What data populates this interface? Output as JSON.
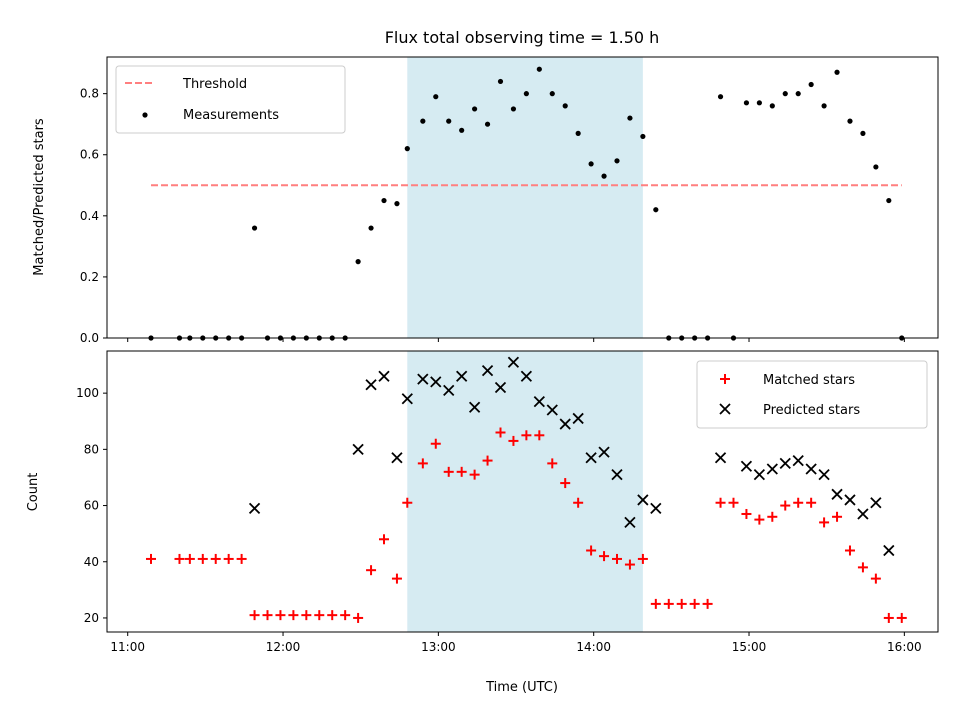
{
  "chart_data": [
    {
      "type": "scatter",
      "title": "Flux total observing time = 1.50 h",
      "xlabel": "",
      "ylabel": "Matched/Predicted stars",
      "ylim": [
        0,
        0.92
      ],
      "yticks": [
        "0.0",
        "0.2",
        "0.4",
        "0.6",
        "0.8"
      ],
      "yticks_values": [
        0,
        0.2,
        0.4,
        0.6,
        0.8
      ],
      "xlim": [
        "10:52",
        "16:13"
      ],
      "highlight_span": {
        "x_start": "12:48",
        "x_end": "14:19",
        "color": "#add8e6"
      },
      "threshold": {
        "name": "Threshold",
        "value": 0.5,
        "x_start": "11:09",
        "x_end": "15:59",
        "color": "#ff7f7f",
        "style": "dashed"
      },
      "legend": {
        "location": "top-left",
        "entries": [
          "Threshold",
          "Measurements"
        ]
      },
      "series": [
        {
          "name": "Measurements",
          "marker": "dot",
          "color": "#000000",
          "x": [
            "11:09",
            "11:20",
            "11:24",
            "11:29",
            "11:34",
            "11:39",
            "11:44",
            "11:49",
            "11:54",
            "11:59",
            "12:04",
            "12:09",
            "12:14",
            "12:19",
            "12:24",
            "12:29",
            "12:34",
            "12:39",
            "12:44",
            "12:48",
            "12:54",
            "12:59",
            "13:04",
            "13:09",
            "13:14",
            "13:19",
            "13:24",
            "13:29",
            "13:34",
            "13:39",
            "13:44",
            "13:49",
            "13:54",
            "13:59",
            "14:04",
            "14:09",
            "14:14",
            "14:19",
            "14:24",
            "14:29",
            "14:34",
            "14:39",
            "14:44",
            "14:49",
            "14:54",
            "14:59",
            "15:04",
            "15:09",
            "15:14",
            "15:19",
            "15:24",
            "15:29",
            "15:34",
            "15:39",
            "15:44",
            "15:49",
            "15:54",
            "15:59"
          ],
          "y": [
            0,
            0,
            0,
            0,
            0,
            0,
            0,
            0.36,
            0,
            0,
            0,
            0,
            0,
            0,
            0,
            0.25,
            0.36,
            0.45,
            0.44,
            0.62,
            0.71,
            0.79,
            0.71,
            0.68,
            0.75,
            0.7,
            0.84,
            0.75,
            0.8,
            0.88,
            0.8,
            0.76,
            0.67,
            0.57,
            0.53,
            0.58,
            0.72,
            0.66,
            0.42,
            0,
            0,
            0,
            0,
            0.79,
            0,
            0.77,
            0.77,
            0.76,
            0.8,
            0.8,
            0.83,
            0.76,
            0.87,
            0.71,
            0.67,
            0.56,
            0.45,
            0
          ]
        }
      ]
    },
    {
      "type": "scatter",
      "title": "",
      "xlabel": "Time (UTC)",
      "ylabel": "Count",
      "ylim": [
        15,
        115
      ],
      "yticks": [
        "20",
        "40",
        "60",
        "80",
        "100"
      ],
      "yticks_values": [
        20,
        40,
        60,
        80,
        100
      ],
      "xlim": [
        "10:52",
        "16:13"
      ],
      "xticks": [
        "11:00",
        "12:00",
        "13:00",
        "14:00",
        "15:00",
        "16:00"
      ],
      "highlight_span": {
        "x_start": "12:48",
        "x_end": "14:19",
        "color": "#add8e6"
      },
      "legend": {
        "location": "top-right",
        "entries": [
          "Matched stars",
          "Predicted stars"
        ]
      },
      "series": [
        {
          "name": "Matched stars",
          "marker": "plus",
          "color": "#ff0000",
          "x": [
            "11:09",
            "11:20",
            "11:24",
            "11:29",
            "11:34",
            "11:39",
            "11:44",
            "11:49",
            "11:54",
            "11:59",
            "12:04",
            "12:09",
            "12:14",
            "12:19",
            "12:24",
            "12:29",
            "12:34",
            "12:39",
            "12:44",
            "12:48",
            "12:54",
            "12:59",
            "13:04",
            "13:09",
            "13:14",
            "13:19",
            "13:24",
            "13:29",
            "13:34",
            "13:39",
            "13:44",
            "13:49",
            "13:54",
            "13:59",
            "14:04",
            "14:09",
            "14:14",
            "14:19",
            "14:24",
            "14:29",
            "14:34",
            "14:39",
            "14:44",
            "14:49",
            "14:54",
            "14:59",
            "15:04",
            "15:09",
            "15:14",
            "15:19",
            "15:24",
            "15:29",
            "15:34",
            "15:39",
            "15:44",
            "15:49",
            "15:54",
            "15:59"
          ],
          "y": [
            41,
            41,
            41,
            41,
            41,
            41,
            41,
            21,
            21,
            21,
            21,
            21,
            21,
            21,
            21,
            20,
            37,
            48,
            34,
            61,
            75,
            82,
            72,
            72,
            71,
            76,
            86,
            83,
            85,
            85,
            75,
            68,
            61,
            44,
            42,
            41,
            39,
            41,
            25,
            25,
            25,
            25,
            25,
            61,
            61,
            57,
            55,
            56,
            60,
            61,
            61,
            54,
            56,
            44,
            38,
            34,
            20,
            20
          ]
        },
        {
          "name": "Predicted stars",
          "marker": "x",
          "color": "#000000",
          "x": [
            "11:49",
            "12:29",
            "12:34",
            "12:39",
            "12:44",
            "12:48",
            "12:54",
            "12:59",
            "13:04",
            "13:09",
            "13:14",
            "13:19",
            "13:24",
            "13:29",
            "13:34",
            "13:39",
            "13:44",
            "13:49",
            "13:54",
            "13:59",
            "14:04",
            "14:09",
            "14:14",
            "14:19",
            "14:24",
            "14:49",
            "14:59",
            "15:04",
            "15:09",
            "15:14",
            "15:19",
            "15:24",
            "15:29",
            "15:34",
            "15:39",
            "15:44",
            "15:49",
            "15:54"
          ],
          "y": [
            59,
            80,
            103,
            106,
            77,
            98,
            105,
            104,
            101,
            106,
            95,
            108,
            102,
            111,
            106,
            97,
            94,
            89,
            91,
            77,
            79,
            71,
            54,
            62,
            59,
            77,
            74,
            71,
            73,
            75,
            76,
            73,
            71,
            64,
            62,
            57,
            61,
            44
          ]
        }
      ]
    }
  ]
}
